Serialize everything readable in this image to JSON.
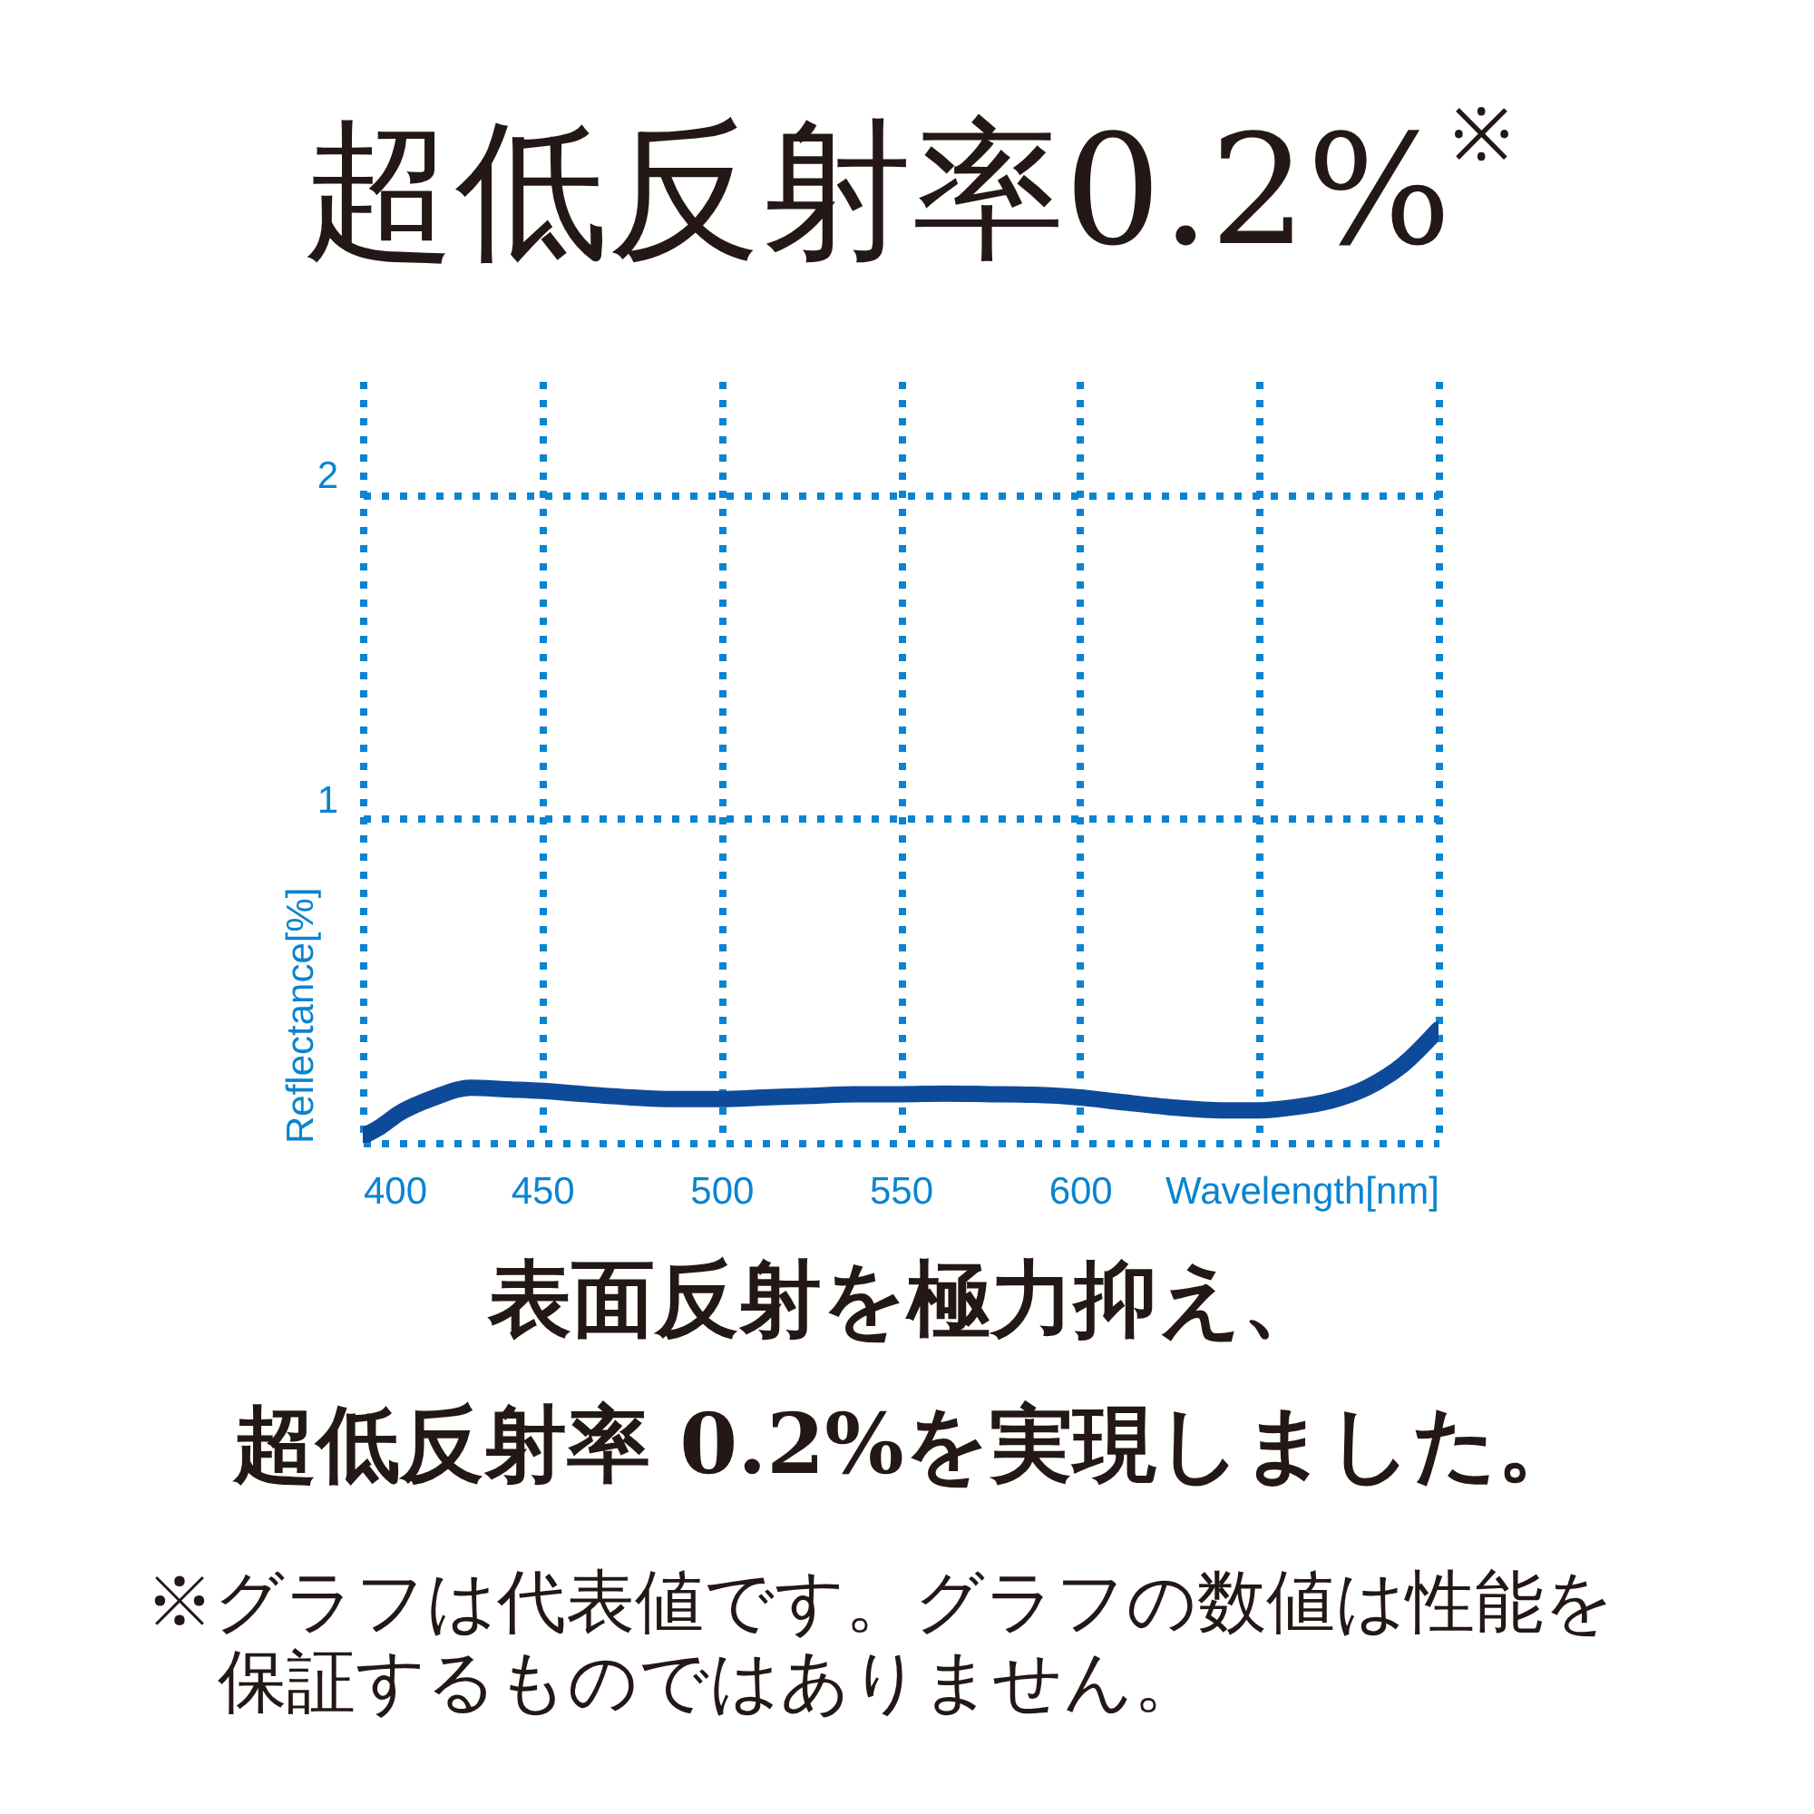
{
  "chart_data": {
    "type": "line",
    "title": "超低反射率0.2%$^{※}$",
    "xlabel": "Wavelength[nm]",
    "ylabel": "Reflectance[%]",
    "x": [
      400,
      405,
      410,
      420,
      430,
      440,
      450,
      462,
      475,
      487,
      500,
      512,
      525,
      537,
      550,
      562,
      575,
      587,
      600,
      612,
      625,
      640,
      650,
      660,
      670,
      680,
      690,
      700
    ],
    "series": [
      {
        "color": "#0d4a9a",
        "values": [
          0.02,
          0.05,
          0.09,
          0.14,
          0.17,
          0.165,
          0.16,
          0.15,
          0.14,
          0.135,
          0.135,
          0.14,
          0.145,
          0.15,
          0.15,
          0.152,
          0.15,
          0.148,
          0.14,
          0.125,
          0.11,
          0.1,
          0.1,
          0.11,
          0.13,
          0.17,
          0.24,
          0.35
        ]
      }
    ],
    "xlim": [
      400,
      700
    ],
    "ylim": [
      0,
      2.35
    ],
    "xticks": [
      400,
      450,
      500,
      550,
      600,
      {
        "value": 650,
        "label": null
      },
      {
        "value": 700,
        "label": null
      }
    ],
    "yticks": [
      {
        "value": 0,
        "label": null
      },
      1,
      2
    ],
    "grid": true,
    "line_style": "solid",
    "marker": "none",
    "annotations": [
      "表面反射を極力抑え、",
      "超低反射率 0.2%を実現しました。",
      "※グラフは代表値です。グラフの数値は性能を保証するものではありません。"
    ]
  }
}
